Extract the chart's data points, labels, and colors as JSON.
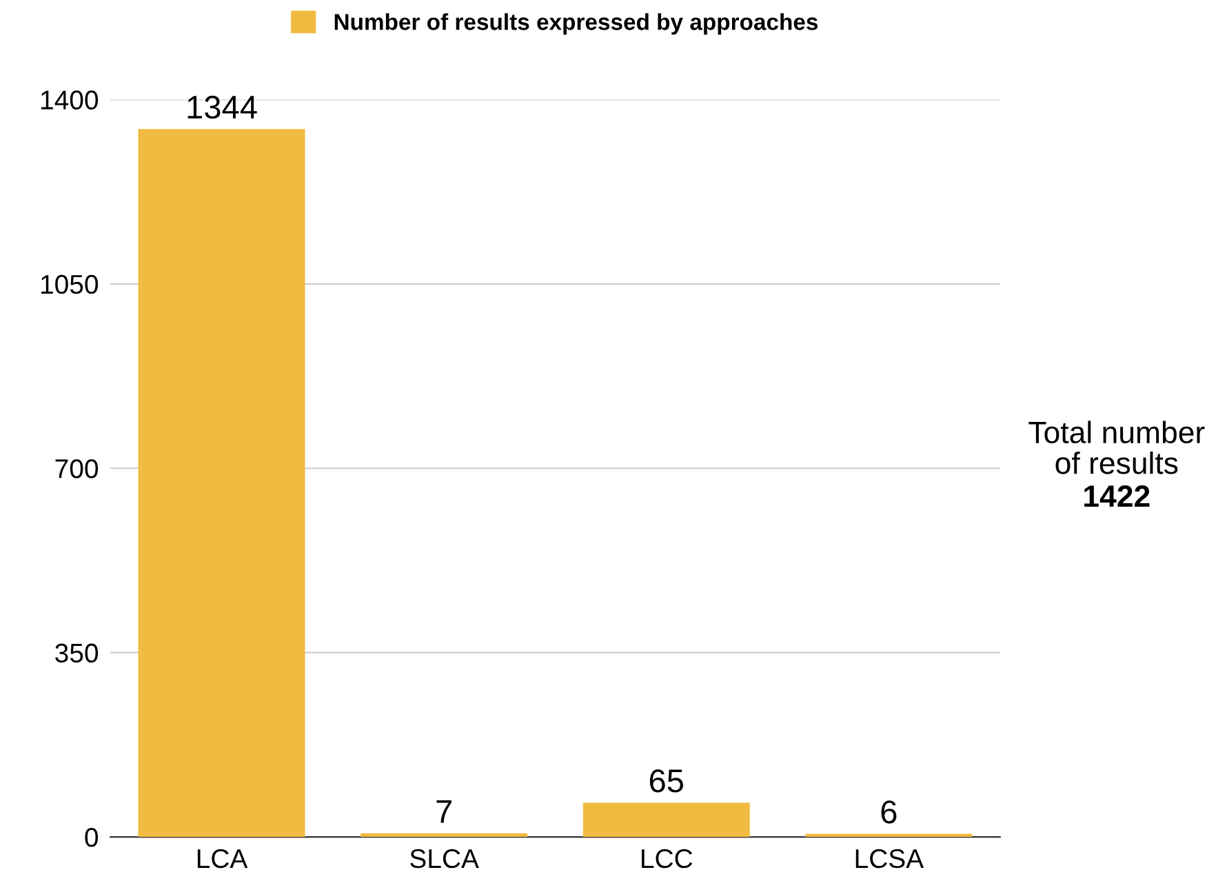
{
  "chart_data": {
    "type": "bar",
    "categories": [
      "LCA",
      "SLCA",
      "LCC",
      "LCSA"
    ],
    "series": [
      {
        "name": "Number of results expressed by approaches",
        "color": "#f1bb41",
        "values": [
          1344,
          7,
          65,
          6
        ]
      }
    ],
    "ylim": [
      0,
      1400
    ],
    "yticks": [
      0,
      350,
      700,
      1050,
      1400
    ],
    "grid": "y",
    "legend": "top",
    "data_labels": true,
    "annotations": [
      "Total number\nof results",
      "1422"
    ]
  }
}
